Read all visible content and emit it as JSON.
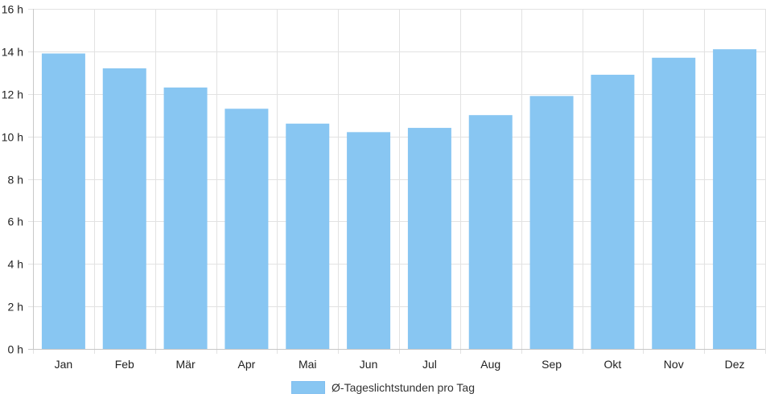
{
  "chart_data": {
    "type": "bar",
    "categories": [
      "Jan",
      "Feb",
      "Mär",
      "Apr",
      "Mai",
      "Jun",
      "Jul",
      "Aug",
      "Sep",
      "Okt",
      "Nov",
      "Dez"
    ],
    "series": [
      {
        "name": "Ø-Tageslichtstunden pro Tag",
        "values": [
          13.9,
          13.2,
          12.3,
          11.3,
          10.6,
          10.2,
          10.4,
          11.0,
          11.9,
          12.9,
          13.7,
          14.1
        ],
        "color": "#88c6f2"
      }
    ],
    "y_ticks": [
      "0 h",
      "2 h",
      "4 h",
      "6 h",
      "8 h",
      "10 h",
      "12 h",
      "14 h",
      "16 h"
    ],
    "ylim": [
      0,
      16
    ],
    "grid": true,
    "legend_position": "bottom-center",
    "title": "",
    "xlabel": "",
    "ylabel": ""
  }
}
